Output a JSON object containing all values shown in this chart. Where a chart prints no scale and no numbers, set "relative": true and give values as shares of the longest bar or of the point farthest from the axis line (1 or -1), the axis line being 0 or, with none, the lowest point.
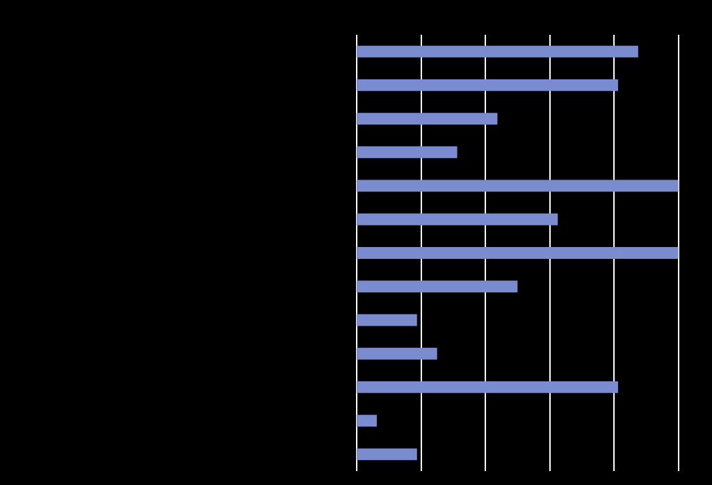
{
  "chart_data": {
    "type": "bar",
    "orientation": "horizontal",
    "relative": true,
    "grid": "x",
    "categories": [
      null,
      null,
      null,
      null,
      null,
      null,
      null,
      null,
      null,
      null,
      null,
      null,
      null
    ],
    "values": [
      0.875,
      0.8125,
      0.4375,
      0.3125,
      1,
      0.625,
      1,
      0.5,
      0.1875,
      0.25,
      0.8125,
      0.0625,
      0.1875
    ],
    "color": "#7b8bd0"
  }
}
